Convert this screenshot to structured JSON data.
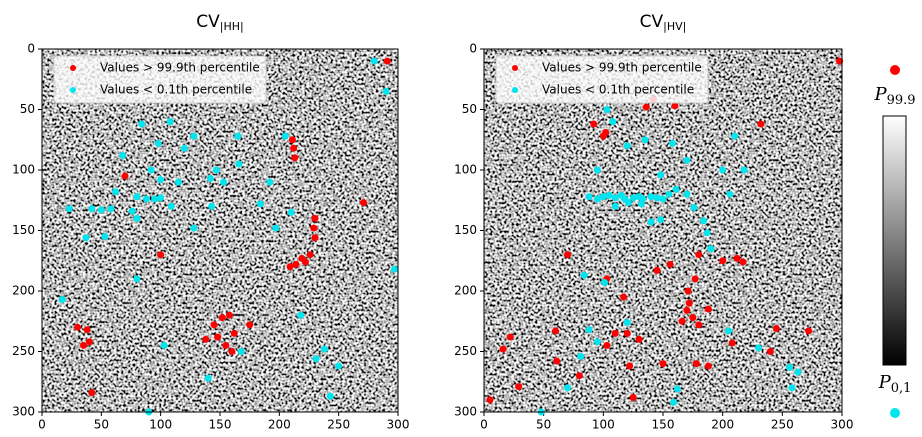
{
  "chart_data": [
    {
      "type": "scatter",
      "title": "CV",
      "title_subscript": "|HH|",
      "xlim": [
        0,
        300
      ],
      "ylim": [
        300,
        0
      ],
      "xticks": [
        0,
        50,
        100,
        150,
        200,
        250,
        300
      ],
      "yticks": [
        0,
        50,
        100,
        150,
        200,
        250,
        300
      ],
      "series": [
        {
          "name": "Values > 99.9th percentile",
          "color": "#ff0000",
          "x": [
            291,
            211,
            212,
            213,
            271,
            230,
            229,
            230,
            226,
            219,
            214,
            222,
            209,
            100,
            70,
            30,
            38,
            35,
            40,
            145,
            152,
            158,
            148,
            155,
            162,
            175,
            138,
            42,
            160
          ],
          "values": [
            10,
            75,
            82,
            90,
            127,
            140,
            148,
            156,
            170,
            173,
            178,
            176,
            180,
            170,
            105,
            230,
            232,
            245,
            242,
            228,
            222,
            220,
            238,
            245,
            235,
            228,
            240,
            284,
            250
          ]
        },
        {
          "name": "Values < 0.1th percentile",
          "color": "#00e5ee",
          "x": [
            280,
            290,
            84,
            108,
            98,
            68,
            128,
            165,
            205,
            120,
            147,
            153,
            166,
            92,
            100,
            115,
            58,
            50,
            62,
            80,
            88,
            95,
            100,
            109,
            76,
            80,
            23,
            42,
            37,
            53,
            143,
            142,
            128,
            184,
            192,
            210,
            197,
            17,
            80,
            231,
            238,
            168,
            243,
            297,
            218,
            250,
            103,
            140,
            90
          ],
          "values": [
            10,
            35,
            62,
            60,
            78,
            88,
            72,
            72,
            72,
            82,
            100,
            110,
            95,
            100,
            108,
            110,
            132,
            133,
            118,
            122,
            124,
            124,
            123,
            130,
            134,
            140,
            132,
            132,
            156,
            155,
            130,
            107,
            148,
            128,
            110,
            135,
            148,
            207,
            190,
            256,
            248,
            250,
            287,
            182,
            220,
            262,
            245,
            272,
            300
          ]
        }
      ],
      "legend": "upper left"
    },
    {
      "type": "scatter",
      "title": "CV",
      "title_subscript": "|HV|",
      "xlim": [
        0,
        300
      ],
      "ylim": [
        300,
        0
      ],
      "xticks": [
        0,
        50,
        100,
        150,
        200,
        250,
        300
      ],
      "yticks": [
        0,
        50,
        100,
        150,
        200,
        250,
        300
      ],
      "series": [
        {
          "name": "Values > 99.9th percentile",
          "color": "#ff0000",
          "x": [
            298,
            92,
            100,
            102,
            160,
            142,
            136,
            232,
            180,
            200,
            212,
            217,
            156,
            145,
            70,
            103,
            117,
            120,
            130,
            122,
            125,
            150,
            177,
            171,
            172,
            188,
            170,
            175,
            180,
            166,
            103,
            110,
            60,
            61,
            80,
            16,
            22,
            29,
            5,
            188,
            178,
            272,
            208,
            240,
            245
          ],
          "values": [
            10,
            62,
            72,
            69,
            47,
            42,
            48,
            62,
            170,
            175,
            173,
            176,
            178,
            183,
            170,
            190,
            205,
            235,
            240,
            262,
            288,
            260,
            190,
            200,
            210,
            215,
            216,
            222,
            228,
            225,
            245,
            235,
            233,
            258,
            270,
            248,
            238,
            279,
            290,
            262,
            260,
            233,
            243,
            250,
            231
          ]
        },
        {
          "name": "Values < 0.1th percentile",
          "color": "#00e5ee",
          "x": [
            108,
            103,
            120,
            135,
            158,
            170,
            210,
            218,
            95,
            148,
            155,
            161,
            170,
            176,
            88,
            95,
            100,
            105,
            110,
            115,
            118,
            125,
            130,
            133,
            140,
            145,
            150,
            148,
            140,
            132,
            121,
            110,
            200,
            206,
            187,
            184,
            190,
            70,
            84,
            101,
            88,
            81,
            95,
            120,
            205,
            230,
            258,
            256,
            48,
            162,
            159,
            263
          ],
          "values": [
            60,
            50,
            80,
            75,
            78,
            92,
            72,
            100,
            100,
            104,
            120,
            116,
            120,
            131,
            122,
            124,
            122,
            121,
            123,
            121,
            124,
            123,
            122,
            124,
            122,
            123,
            124,
            141,
            143,
            128,
            127,
            130,
            100,
            120,
            152,
            142,
            165,
            280,
            187,
            193,
            232,
            254,
            242,
            226,
            233,
            247,
            280,
            263,
            300,
            281,
            292,
            267
          ]
        }
      ],
      "legend": "upper left"
    }
  ],
  "colorbar": {
    "top_label": "P",
    "top_subscript": "99.9",
    "bottom_label": "P",
    "bottom_subscript": "0,1"
  }
}
